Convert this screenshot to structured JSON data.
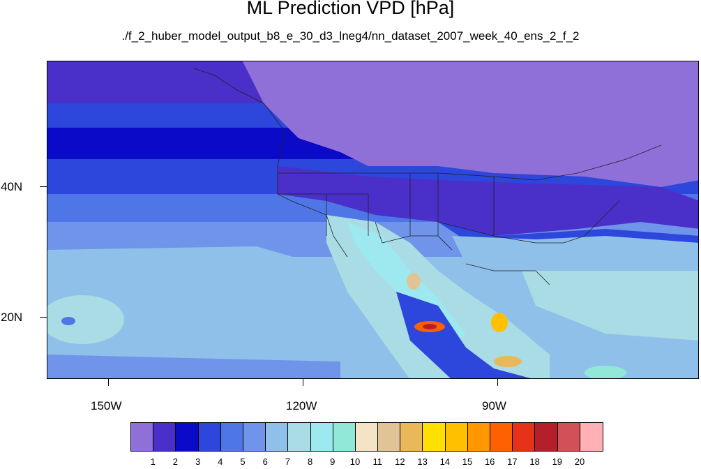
{
  "title": "ML Prediction VPD [hPa]",
  "subtitle": "./f_2_huber_model_output_b8_e_30_d3_lneg4/nn_dataset_2007_week_40_ens_2_f_2",
  "axes": {
    "lat_labels": [
      "40N",
      "20N"
    ],
    "lon_labels": [
      "150W",
      "120W",
      "90W"
    ]
  },
  "colorbar": {
    "colors": [
      "#8f6fd8",
      "#4a2fc8",
      "#0a0ac8",
      "#2d46dc",
      "#4f76e6",
      "#6f94ea",
      "#8fc0ea",
      "#a9dce4",
      "#9ee8f0",
      "#92e8d8",
      "#f2e4c4",
      "#e0c496",
      "#e8b85a",
      "#ffe000",
      "#ffc000",
      "#ff9800",
      "#ff6000",
      "#e63218",
      "#b4202a",
      "#d25058",
      "#ffb0b4"
    ],
    "labels": [
      "1",
      "2",
      "3",
      "4",
      "5",
      "6",
      "7",
      "8",
      "9",
      "10",
      "11",
      "12",
      "13",
      "14",
      "15",
      "16",
      "17",
      "18",
      "19",
      "20"
    ]
  }
}
